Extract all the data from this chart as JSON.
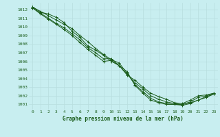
{
  "title": "Graphe pression niveau de la mer (hPa)",
  "bg_color": "#c8eef0",
  "grid_color": "#b8dede",
  "line_color": "#1a5c1a",
  "xlim": [
    -0.5,
    23.5
  ],
  "ylim": [
    1000.4,
    1012.8
  ],
  "yticks": [
    1001,
    1002,
    1003,
    1004,
    1005,
    1006,
    1007,
    1008,
    1009,
    1010,
    1011,
    1012
  ],
  "xticks": [
    0,
    1,
    2,
    3,
    4,
    5,
    6,
    7,
    8,
    9,
    10,
    11,
    12,
    13,
    14,
    15,
    16,
    17,
    18,
    19,
    20,
    21,
    22,
    23
  ],
  "series": [
    [
      1012.3,
      1011.7,
      1011.5,
      1011.1,
      1010.5,
      1009.5,
      1008.8,
      1007.8,
      1007.3,
      1006.7,
      1006.0,
      1005.5,
      1004.8,
      1003.2,
      1002.3,
      1001.5,
      1001.2,
      1001.0,
      1001.0,
      1001.0,
      1001.2,
      1001.5,
      1001.8,
      1002.2
    ],
    [
      1012.3,
      1011.8,
      1011.3,
      1010.8,
      1010.3,
      1009.8,
      1009.0,
      1008.3,
      1007.5,
      1006.8,
      1006.2,
      1005.8,
      1004.6,
      1003.3,
      1002.5,
      1001.7,
      1001.3,
      1001.1,
      1001.0,
      1000.9,
      1001.1,
      1001.5,
      1001.9,
      1002.2
    ],
    [
      1012.2,
      1011.6,
      1011.0,
      1010.4,
      1009.9,
      1009.2,
      1008.5,
      1007.6,
      1007.0,
      1006.3,
      1006.3,
      1005.5,
      1004.5,
      1003.5,
      1002.8,
      1002.0,
      1001.6,
      1001.3,
      1001.1,
      1001.0,
      1001.3,
      1001.8,
      1002.0,
      1002.3
    ],
    [
      1012.2,
      1011.5,
      1010.9,
      1010.3,
      1009.7,
      1009.0,
      1008.2,
      1007.4,
      1006.7,
      1006.0,
      1006.1,
      1005.5,
      1004.4,
      1003.8,
      1003.0,
      1002.3,
      1001.9,
      1001.6,
      1001.2,
      1001.1,
      1001.5,
      1002.0,
      1002.1,
      1002.3
    ]
  ]
}
